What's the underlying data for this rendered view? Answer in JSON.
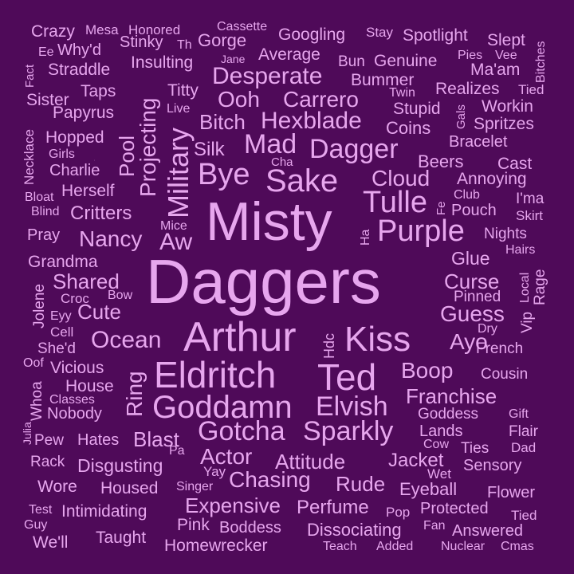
{
  "background": "#4f0a59",
  "text_color": "#e7a6ee",
  "words": [
    "Daggers",
    "Misty",
    "Arthur",
    "Eldritch",
    "Ted",
    "Kiss",
    "Goddamn",
    "Sake",
    "Tulle",
    "Purple",
    "Gotcha",
    "Sparkly",
    "Elvish",
    "Military",
    "Bye",
    "Mad",
    "Dagger",
    "Hexblade",
    "Cloud",
    "Boop",
    "Franchise",
    "Desperate",
    "Carrero",
    "Ocean",
    "Ring",
    "Projecting",
    "Shared",
    "Cute",
    "Aw",
    "Nancy",
    "Critters",
    "Curse",
    "Guess",
    "Chasing",
    "Actor",
    "Attitude",
    "Blast",
    "Ayo",
    "Ooh",
    "Bitch",
    "Pool",
    "Rude",
    "Jacket",
    "Expensive",
    "Perfume",
    "Dissociating",
    "Expensive",
    "Bummer",
    "Stupid",
    "Googling",
    "Genuine",
    "Spotlight",
    "Slept",
    "Ma'am",
    "Realizes",
    "Workin",
    "Spritzes",
    "Bracelet",
    "Beers",
    "Cast",
    "Annoying",
    "I'ma",
    "Nights",
    "Glue",
    "Pinned",
    "Cousin",
    "French",
    "Goddess",
    "Lands",
    "Flair",
    "Ties",
    "Sensory",
    "Flower",
    "Eyeball",
    "Protected",
    "Answered",
    "Nuclear",
    "Cmas",
    "Teach",
    "Added",
    "Boddess",
    "Homewrecker",
    "Taught",
    "Pink",
    "We'll",
    "Guy",
    "Test",
    "Intimidating",
    "Wore",
    "Housed",
    "Singer",
    "Disgusting",
    "Rack",
    "Pew",
    "Hates",
    "Nobody",
    "Vicious",
    "House",
    "She'd",
    "Cell",
    "Grandma",
    "Pray",
    "Herself",
    "Charlie",
    "Hopped",
    "Papyrus",
    "Taps",
    "Straddle",
    "Why'd",
    "Crazy",
    "Mesa",
    "Honored",
    "Stinky",
    "Gorge",
    "Cassette",
    "Average",
    "Insulting",
    "Titty",
    "Silk",
    "Coins",
    "Twin",
    "Stay",
    "Bun",
    "Pies",
    "Vee",
    "Tied",
    "Gals",
    "Club",
    "Pouch",
    "Skirt",
    "Hairs",
    "Local",
    "Rage",
    "Vip",
    "Dry",
    "Gift",
    "Dad",
    "Wet",
    "Pop",
    "Fan",
    "Yay",
    "Pa",
    "Cow",
    "Whoa",
    "Oof",
    "Classes",
    "Julia",
    "Eyy",
    "Croc",
    "Bow",
    "Jolene",
    "Bloat",
    "Blind",
    "Girls",
    "Sister",
    "Necklace",
    "Fact",
    "Ee",
    "Th",
    "Jane",
    "Live",
    "Cha",
    "Mice",
    "Ha",
    "Fe",
    "Hdc",
    "Bitches",
    "Dc",
    "Cmas",
    "Nuclear",
    "Jacket",
    "Ties",
    "Ring"
  ]
}
